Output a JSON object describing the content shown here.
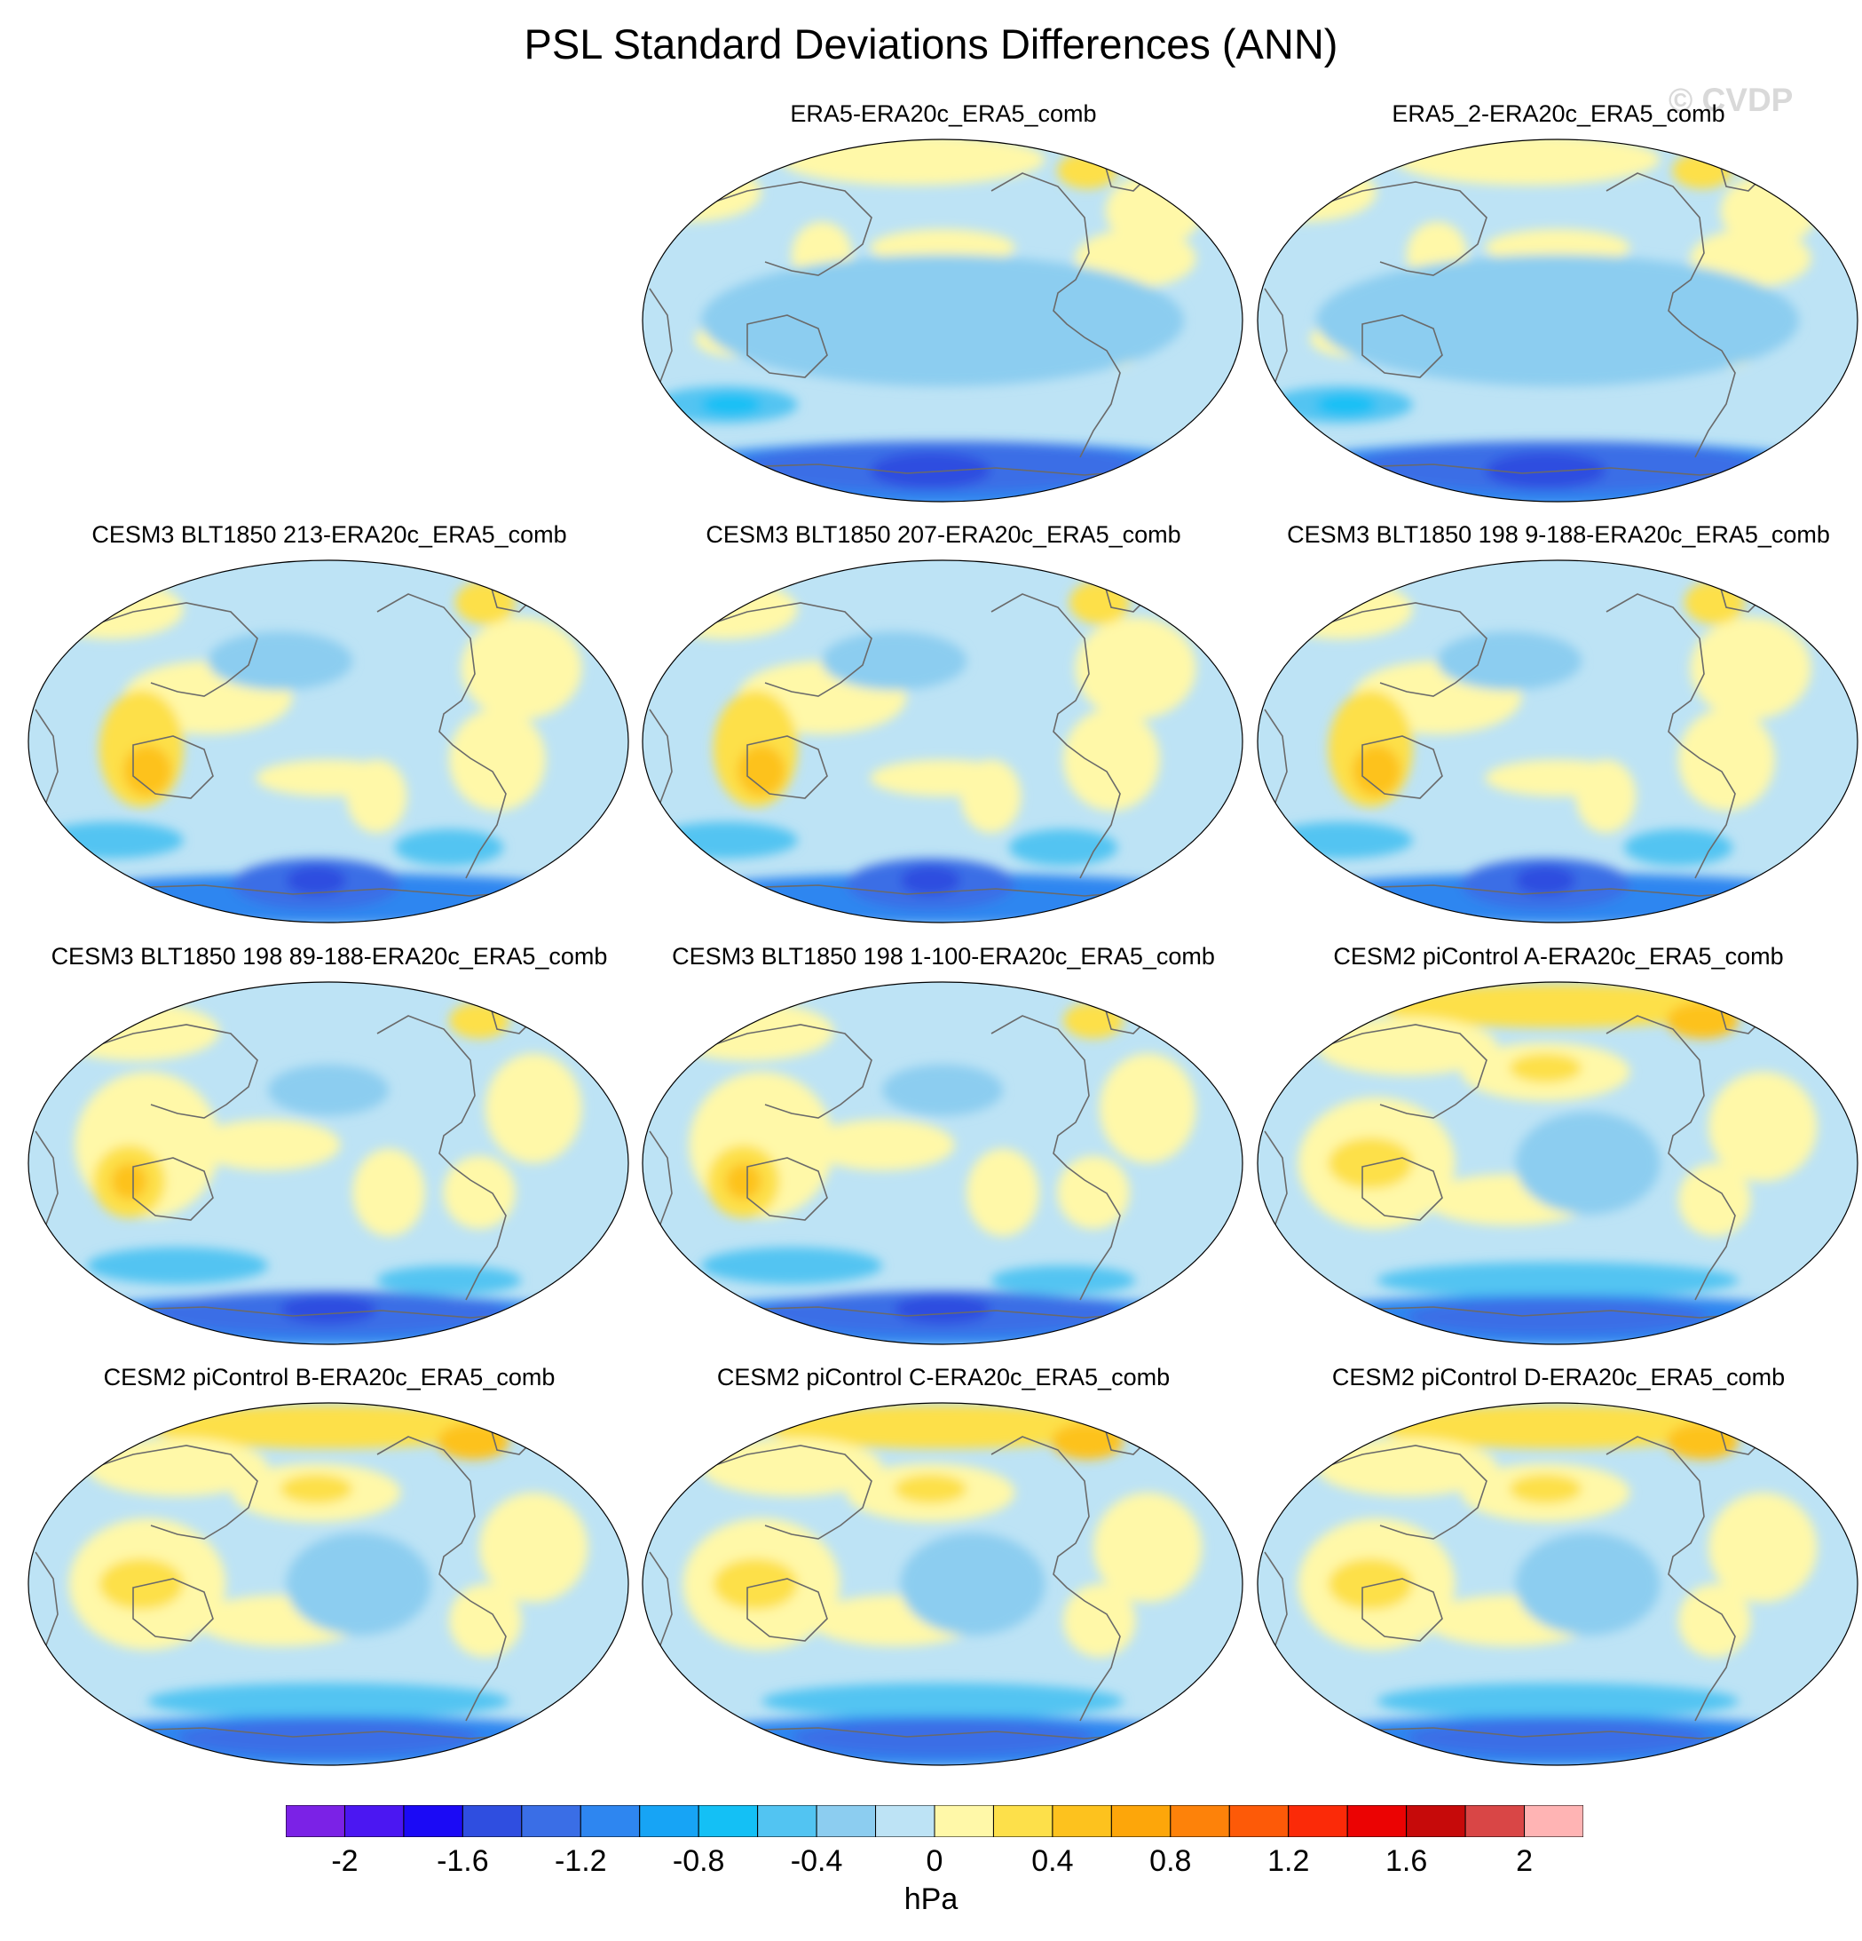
{
  "title": "PSL Standard Deviations Differences (ANN)",
  "watermark": "© CVDP",
  "panels": [
    {
      "title": "ERA5-ERA20c_ERA5_comb",
      "row": 0,
      "col": 1,
      "variant": 0
    },
    {
      "title": "ERA5_2-ERA20c_ERA5_comb",
      "row": 0,
      "col": 2,
      "variant": 0
    },
    {
      "title": "CESM3 BLT1850 213-ERA20c_ERA5_comb",
      "row": 1,
      "col": 0,
      "variant": 1
    },
    {
      "title": "CESM3 BLT1850 207-ERA20c_ERA5_comb",
      "row": 1,
      "col": 1,
      "variant": 1
    },
    {
      "title": "CESM3 BLT1850 198 9-188-ERA20c_ERA5_comb",
      "row": 1,
      "col": 2,
      "variant": 1
    },
    {
      "title": "CESM3 BLT1850 198 89-188-ERA20c_ERA5_comb",
      "row": 2,
      "col": 0,
      "variant": 2
    },
    {
      "title": "CESM3 BLT1850 198 1-100-ERA20c_ERA5_comb",
      "row": 2,
      "col": 1,
      "variant": 2
    },
    {
      "title": "CESM2 piControl A-ERA20c_ERA5_comb",
      "row": 2,
      "col": 2,
      "variant": 3
    },
    {
      "title": "CESM2 piControl B-ERA20c_ERA5_comb",
      "row": 3,
      "col": 0,
      "variant": 3
    },
    {
      "title": "CESM2 piControl C-ERA20c_ERA5_comb",
      "row": 3,
      "col": 1,
      "variant": 3
    },
    {
      "title": "CESM2 piControl D-ERA20c_ERA5_comb",
      "row": 3,
      "col": 2,
      "variant": 3
    }
  ],
  "colorbar": {
    "colors": [
      "#7b22e6",
      "#4b17f2",
      "#1b0af5",
      "#2f4ee0",
      "#3a6ee6",
      "#2e86f0",
      "#17a4f5",
      "#14c0f5",
      "#52c4f2",
      "#8ccdf0",
      "#bde3f5",
      "#fff8a8",
      "#fde04a",
      "#fdc21e",
      "#fda60a",
      "#fd820a",
      "#fd5a08",
      "#fb2a08",
      "#eb0303",
      "#c60a0a",
      "#d94646",
      "#ffb4b4"
    ],
    "tick_labels": [
      "-2",
      "-1.6",
      "-1.2",
      "-0.8",
      "-0.4",
      "0",
      "0.4",
      "0.8",
      "1.2",
      "1.6",
      "2"
    ],
    "units": "hPa"
  }
}
